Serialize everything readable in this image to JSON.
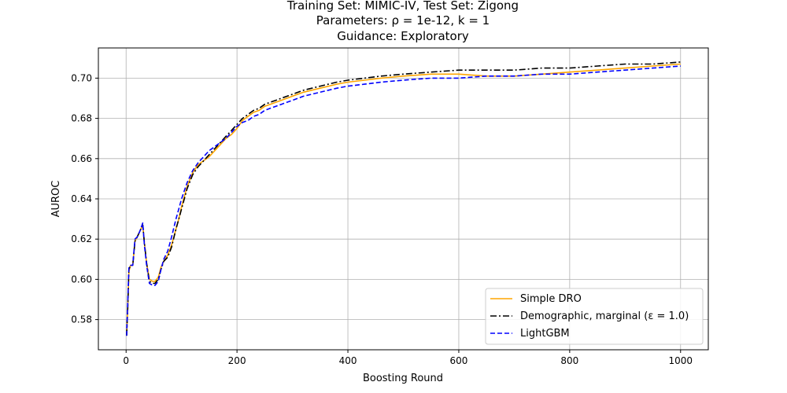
{
  "chart_data": {
    "type": "line",
    "title_lines": [
      "Training Set: MIMIC-IV, Test Set: Zigong",
      "Parameters: ρ = 1e-12, k = 1",
      "Guidance: Exploratory"
    ],
    "xlabel": "Boosting Round",
    "ylabel": "AUROC",
    "xlim": [
      -50,
      1050
    ],
    "ylim": [
      0.565,
      0.715
    ],
    "xticks": [
      0,
      200,
      400,
      600,
      800,
      1000
    ],
    "xtick_labels": [
      "0",
      "200",
      "400",
      "600",
      "800",
      "1000"
    ],
    "yticks": [
      0.58,
      0.6,
      0.62,
      0.64,
      0.66,
      0.68,
      0.7
    ],
    "ytick_labels": [
      "0.58",
      "0.60",
      "0.62",
      "0.64",
      "0.66",
      "0.68",
      "0.70"
    ],
    "grid": true,
    "legend_position": "lower-right",
    "series": [
      {
        "name": "Simple DRO",
        "color": "#ffa500",
        "dash": "solid",
        "x": [
          1,
          3,
          5,
          8,
          12,
          16,
          20,
          25,
          30,
          33,
          37,
          42,
          48,
          52,
          58,
          63,
          68,
          75,
          82,
          90,
          95,
          100,
          110,
          120,
          130,
          140,
          150,
          160,
          170,
          180,
          190,
          200,
          210,
          220,
          230,
          240,
          250,
          260,
          270,
          280,
          300,
          320,
          350,
          380,
          400,
          430,
          460,
          500,
          550,
          600,
          650,
          700,
          750,
          800,
          850,
          900,
          950,
          1000
        ],
        "y": [
          0.572,
          0.585,
          0.604,
          0.607,
          0.607,
          0.619,
          0.621,
          0.624,
          0.627,
          0.618,
          0.608,
          0.6,
          0.599,
          0.599,
          0.601,
          0.606,
          0.609,
          0.612,
          0.617,
          0.625,
          0.63,
          0.636,
          0.646,
          0.653,
          0.657,
          0.659,
          0.661,
          0.664,
          0.667,
          0.67,
          0.672,
          0.675,
          0.679,
          0.681,
          0.683,
          0.684,
          0.686,
          0.687,
          0.688,
          0.689,
          0.691,
          0.693,
          0.695,
          0.697,
          0.698,
          0.699,
          0.7,
          0.701,
          0.702,
          0.702,
          0.701,
          0.701,
          0.702,
          0.703,
          0.704,
          0.705,
          0.706,
          0.707
        ]
      },
      {
        "name": "Demographic, marginal (ε = 1.0)",
        "color": "#000000",
        "dash": "dashdot",
        "x": [
          1,
          3,
          5,
          8,
          12,
          16,
          20,
          25,
          30,
          33,
          37,
          42,
          48,
          52,
          58,
          63,
          68,
          75,
          82,
          90,
          95,
          100,
          110,
          120,
          130,
          140,
          150,
          160,
          170,
          180,
          190,
          200,
          210,
          220,
          230,
          240,
          250,
          260,
          270,
          280,
          300,
          320,
          350,
          380,
          400,
          430,
          460,
          500,
          550,
          600,
          650,
          700,
          750,
          800,
          850,
          900,
          950,
          1000
        ],
        "y": [
          0.572,
          0.586,
          0.605,
          0.607,
          0.607,
          0.619,
          0.621,
          0.624,
          0.627,
          0.618,
          0.608,
          0.599,
          0.598,
          0.598,
          0.6,
          0.605,
          0.609,
          0.611,
          0.616,
          0.625,
          0.63,
          0.635,
          0.645,
          0.652,
          0.656,
          0.659,
          0.662,
          0.665,
          0.668,
          0.671,
          0.674,
          0.677,
          0.68,
          0.682,
          0.684,
          0.685,
          0.687,
          0.688,
          0.689,
          0.69,
          0.692,
          0.694,
          0.696,
          0.698,
          0.699,
          0.7,
          0.701,
          0.702,
          0.703,
          0.704,
          0.704,
          0.704,
          0.705,
          0.705,
          0.706,
          0.707,
          0.707,
          0.708
        ]
      },
      {
        "name": "LightGBM",
        "color": "#0000ff",
        "dash": "dashed",
        "x": [
          1,
          3,
          5,
          8,
          12,
          16,
          20,
          25,
          30,
          33,
          37,
          42,
          48,
          52,
          58,
          63,
          68,
          75,
          82,
          90,
          95,
          100,
          110,
          120,
          130,
          140,
          150,
          160,
          170,
          180,
          190,
          200,
          210,
          220,
          230,
          240,
          250,
          260,
          270,
          280,
          300,
          320,
          350,
          380,
          400,
          430,
          460,
          500,
          550,
          600,
          650,
          700,
          750,
          800,
          850,
          900,
          950,
          1000
        ],
        "y": [
          0.572,
          0.588,
          0.606,
          0.607,
          0.607,
          0.62,
          0.621,
          0.624,
          0.628,
          0.617,
          0.607,
          0.598,
          0.597,
          0.597,
          0.599,
          0.605,
          0.61,
          0.614,
          0.621,
          0.63,
          0.635,
          0.64,
          0.648,
          0.654,
          0.658,
          0.661,
          0.664,
          0.666,
          0.668,
          0.67,
          0.673,
          0.676,
          0.678,
          0.679,
          0.681,
          0.682,
          0.684,
          0.685,
          0.686,
          0.687,
          0.689,
          0.691,
          0.693,
          0.695,
          0.696,
          0.697,
          0.698,
          0.699,
          0.7,
          0.7,
          0.701,
          0.701,
          0.702,
          0.702,
          0.703,
          0.704,
          0.705,
          0.706
        ]
      }
    ]
  }
}
